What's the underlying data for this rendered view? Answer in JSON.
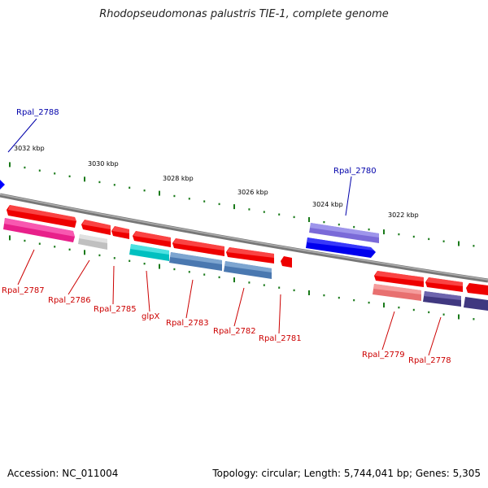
{
  "title": "Rhodopseudomonas palustris TIE-1, complete genome",
  "footer": {
    "accession": "Accession: NC_011004",
    "stats": "Topology: circular; Length: 5,744,041 bp; Genes: 5,305"
  },
  "colors": {
    "backbone": "#8a8a8a",
    "tick": "#1a7a1a",
    "label_red": "#cc0000",
    "label_blue": "#0000aa"
  },
  "kbp_ticks": [
    "3032 kbp",
    "3030 kbp",
    "3028 kbp",
    "3026 kbp",
    "3024 kbp",
    "3022 kbp"
  ],
  "genes": [
    {
      "id": "Rpal_2788",
      "label_color": "blue"
    },
    {
      "id": "Rpal_2787",
      "label_color": "red"
    },
    {
      "id": "Rpal_2786",
      "label_color": "red"
    },
    {
      "id": "Rpal_2785",
      "label_color": "red"
    },
    {
      "id": "glpX",
      "label_color": "red"
    },
    {
      "id": "Rpal_2783",
      "label_color": "red"
    },
    {
      "id": "Rpal_2782",
      "label_color": "red"
    },
    {
      "id": "Rpal_2781",
      "label_color": "red"
    },
    {
      "id": "Rpal_2780",
      "label_color": "blue"
    },
    {
      "id": "Rpal_2779",
      "label_color": "red"
    },
    {
      "id": "Rpal_2778",
      "label_color": "red"
    }
  ]
}
